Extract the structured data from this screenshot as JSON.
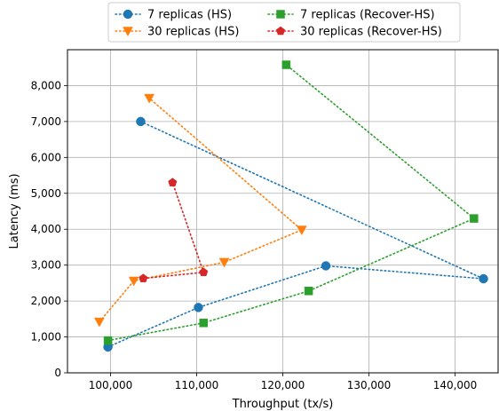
{
  "chart_data": {
    "type": "line",
    "title": "",
    "xlabel": "Throughput (tx/s)",
    "ylabel": "Latency (ms)",
    "xlim": [
      95000,
      145000
    ],
    "ylim": [
      0,
      9000
    ],
    "xticks": [
      100000,
      110000,
      120000,
      130000,
      140000
    ],
    "xtick_labels": [
      "100,000",
      "110,000",
      "120,000",
      "130,000",
      "140,000"
    ],
    "yticks": [
      0,
      1000,
      2000,
      3000,
      4000,
      5000,
      6000,
      7000,
      8000
    ],
    "ytick_labels": [
      "0",
      "1,000",
      "2,000",
      "3,000",
      "4,000",
      "5,000",
      "6,000",
      "7,000",
      "8,000"
    ],
    "grid": true,
    "legend_position": "top-center",
    "series": [
      {
        "name": "7 replicas (HS)",
        "color": "#1f77b4",
        "marker": "circle",
        "linestyle": "dotted",
        "points": [
          {
            "x": 99700,
            "y": 720
          },
          {
            "x": 110200,
            "y": 1820
          },
          {
            "x": 125000,
            "y": 2980
          },
          {
            "x": 143300,
            "y": 2620
          },
          {
            "x": 103500,
            "y": 7000
          }
        ]
      },
      {
        "name": "30 replicas (HS)",
        "color": "#ff7f0e",
        "marker": "triangle-down",
        "linestyle": "dotted",
        "points": [
          {
            "x": 98700,
            "y": 1420
          },
          {
            "x": 102700,
            "y": 2560
          },
          {
            "x": 113200,
            "y": 3080
          },
          {
            "x": 122200,
            "y": 3980
          },
          {
            "x": 104500,
            "y": 7650
          }
        ]
      },
      {
        "name": "7 replicas (Recover-HS)",
        "color": "#2ca02c",
        "marker": "square",
        "linestyle": "dotted",
        "points": [
          {
            "x": 99700,
            "y": 900
          },
          {
            "x": 110800,
            "y": 1390
          },
          {
            "x": 123000,
            "y": 2280
          },
          {
            "x": 142200,
            "y": 4300
          },
          {
            "x": 120400,
            "y": 8580
          }
        ]
      },
      {
        "name": "30 replicas (Recover-HS)",
        "color": "#d62728",
        "marker": "pentagon",
        "linestyle": "dotted",
        "points": [
          {
            "x": 103800,
            "y": 2630
          },
          {
            "x": 110800,
            "y": 2800
          },
          {
            "x": 107200,
            "y": 5300
          }
        ]
      }
    ]
  }
}
